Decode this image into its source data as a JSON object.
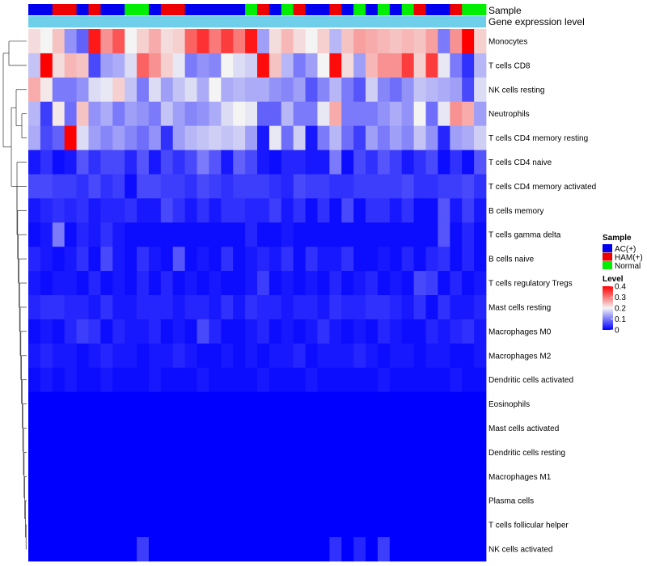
{
  "chart_data": {
    "type": "heatmap",
    "annotation_rows": [
      "Sample",
      "Gene expression level"
    ],
    "sample_groups": [
      "AC(+)",
      "AC(+)",
      "HAM(+)",
      "HAM(+)",
      "AC(+)",
      "HAM(+)",
      "AC(+)",
      "AC(+)",
      "Normal",
      "Normal",
      "AC(+)",
      "HAM(+)",
      "HAM(+)",
      "AC(+)",
      "AC(+)",
      "AC(+)",
      "AC(+)",
      "AC(+)",
      "Normal",
      "HAM(+)",
      "AC(+)",
      "Normal",
      "HAM(+)",
      "AC(+)",
      "AC(+)",
      "HAM(+)",
      "AC(+)",
      "Normal",
      "AC(+)",
      "Normal",
      "AC(+)",
      "Normal",
      "HAM(+)",
      "AC(+)",
      "AC(+)",
      "HAM(+)",
      "Normal",
      "Normal"
    ],
    "rows": [
      {
        "name": "Monocytes",
        "values": [
          0.22,
          0.2,
          0.24,
          0.12,
          0.08,
          0.38,
          0.28,
          0.33,
          0.2,
          0.23,
          0.26,
          0.22,
          0.23,
          0.32,
          0.36,
          0.3,
          0.35,
          0.3,
          0.38,
          0.13,
          0.22,
          0.25,
          0.22,
          0.2,
          0.23,
          0.15,
          0.24,
          0.27,
          0.26,
          0.25,
          0.24,
          0.25,
          0.24,
          0.27,
          0.1,
          0.28,
          0.4,
          0.23
        ]
      },
      {
        "name": "T cells CD8",
        "values": [
          0.16,
          0.4,
          0.22,
          0.25,
          0.24,
          0.06,
          0.13,
          0.14,
          0.18,
          0.32,
          0.28,
          0.23,
          0.19,
          0.1,
          0.12,
          0.11,
          0.2,
          0.18,
          0.17,
          0.39,
          0.24,
          0.15,
          0.1,
          0.13,
          0.2,
          0.39,
          0.22,
          0.13,
          0.25,
          0.28,
          0.28,
          0.35,
          0.23,
          0.35,
          0.19,
          0.1,
          0.04,
          0.15
        ]
      },
      {
        "name": "NK cells resting",
        "values": [
          0.26,
          0.21,
          0.1,
          0.1,
          0.12,
          0.18,
          0.19,
          0.23,
          0.16,
          0.1,
          0.18,
          0.13,
          0.16,
          0.18,
          0.14,
          0.2,
          0.14,
          0.15,
          0.14,
          0.14,
          0.12,
          0.11,
          0.13,
          0.07,
          0.11,
          0.15,
          0.1,
          0.07,
          0.17,
          0.11,
          0.09,
          0.12,
          0.16,
          0.15,
          0.14,
          0.13,
          0.06,
          0.18
        ]
      },
      {
        "name": "Neutrophils",
        "values": [
          0.15,
          0.05,
          0.21,
          0.09,
          0.24,
          0.12,
          0.14,
          0.1,
          0.13,
          0.12,
          0.1,
          0.16,
          0.13,
          0.11,
          0.12,
          0.14,
          0.18,
          0.2,
          0.19,
          0.08,
          0.08,
          0.15,
          0.1,
          0.1,
          0.19,
          0.26,
          0.1,
          0.1,
          0.1,
          0.12,
          0.14,
          0.12,
          0.2,
          0.09,
          0.19,
          0.28,
          0.26,
          0.13
        ]
      },
      {
        "name": "T cells CD4 memory resting",
        "values": [
          0.14,
          0.06,
          0.08,
          0.4,
          0.18,
          0.13,
          0.11,
          0.13,
          0.11,
          0.09,
          0.12,
          0.04,
          0.13,
          0.15,
          0.16,
          0.17,
          0.16,
          0.17,
          0.13,
          0.02,
          0.19,
          0.09,
          0.17,
          0.02,
          0.1,
          0.15,
          0.09,
          0.05,
          0.13,
          0.1,
          0.13,
          0.11,
          0.16,
          0.12,
          0.03,
          0.13,
          0.14,
          0.17
        ]
      },
      {
        "name": "T cells CD4 naive",
        "values": [
          0.02,
          0.04,
          0.01,
          0.02,
          0.07,
          0.04,
          0.06,
          0.06,
          0.03,
          0.07,
          0.02,
          0.06,
          0.04,
          0.06,
          0.1,
          0.07,
          0.02,
          0.08,
          0.06,
          0.02,
          0.01,
          0.03,
          0.03,
          0.02,
          0.02,
          0.1,
          0.01,
          0.06,
          0.04,
          0.07,
          0.05,
          0.02,
          0.04,
          0.06,
          0.01,
          0.04,
          0.01,
          0.07
        ]
      },
      {
        "name": "T cells CD4 memory activated",
        "values": [
          0.06,
          0.06,
          0.05,
          0.05,
          0.04,
          0.06,
          0.04,
          0.05,
          0.01,
          0.06,
          0.06,
          0.05,
          0.05,
          0.04,
          0.06,
          0.05,
          0.04,
          0.05,
          0.05,
          0.05,
          0.04,
          0.03,
          0.06,
          0.05,
          0.05,
          0.04,
          0.04,
          0.05,
          0.05,
          0.05,
          0.05,
          0.06,
          0.04,
          0.04,
          0.05,
          0.05,
          0.06,
          0.04
        ]
      },
      {
        "name": "B cells memory",
        "values": [
          0.02,
          0.03,
          0.04,
          0.03,
          0.04,
          0.02,
          0.03,
          0.03,
          0.04,
          0.02,
          0.02,
          0.06,
          0.04,
          0.02,
          0.04,
          0.02,
          0.04,
          0.04,
          0.03,
          0.03,
          0.05,
          0.02,
          0.04,
          0.01,
          0.04,
          0.01,
          0.06,
          0.01,
          0.04,
          0.04,
          0.02,
          0.04,
          0.01,
          0.01,
          0.07,
          0.02,
          0.05,
          0.02
        ]
      },
      {
        "name": "T cells gamma delta",
        "values": [
          0.01,
          0.02,
          0.1,
          0.01,
          0.03,
          0.02,
          0.04,
          0.02,
          0.01,
          0.01,
          0.01,
          0.01,
          0.01,
          0.01,
          0.01,
          0.01,
          0.01,
          0.01,
          0.03,
          0.01,
          0.01,
          0.02,
          0.01,
          0.01,
          0.01,
          0.01,
          0.01,
          0.01,
          0.01,
          0.01,
          0.01,
          0.01,
          0.01,
          0.01,
          0.07,
          0.01,
          0.03,
          0.01
        ]
      },
      {
        "name": "B cells naive",
        "values": [
          0.03,
          0.02,
          0.01,
          0.02,
          0.04,
          0.01,
          0.06,
          0.02,
          0.01,
          0.04,
          0.02,
          0.01,
          0.07,
          0.01,
          0.02,
          0.01,
          0.04,
          0.01,
          0.02,
          0.03,
          0.02,
          0.04,
          0.01,
          0.04,
          0.02,
          0.02,
          0.04,
          0.01,
          0.01,
          0.02,
          0.01,
          0.03,
          0.01,
          0.03,
          0.04,
          0.01,
          0.03,
          0.01
        ]
      },
      {
        "name": "T cells regulatory  Tregs",
        "values": [
          0.02,
          0.01,
          0.02,
          0.02,
          0.01,
          0.03,
          0.01,
          0.02,
          0.01,
          0.03,
          0.01,
          0.03,
          0.01,
          0.02,
          0.01,
          0.02,
          0.01,
          0.01,
          0.02,
          0.05,
          0.01,
          0.02,
          0.01,
          0.02,
          0.01,
          0.03,
          0.01,
          0.02,
          0.03,
          0.01,
          0.02,
          0.01,
          0.06,
          0.05,
          0.01,
          0.03,
          0.01,
          0.02
        ]
      },
      {
        "name": "Mast cells resting",
        "values": [
          0.03,
          0.04,
          0.04,
          0.03,
          0.03,
          0.02,
          0.04,
          0.02,
          0.02,
          0.03,
          0.03,
          0.03,
          0.02,
          0.03,
          0.03,
          0.02,
          0.04,
          0.02,
          0.04,
          0.03,
          0.03,
          0.02,
          0.03,
          0.03,
          0.02,
          0.04,
          0.03,
          0.03,
          0.04,
          0.04,
          0.03,
          0.02,
          0.04,
          0.01,
          0.04,
          0.02,
          0.02,
          0.03
        ]
      },
      {
        "name": "Macrophages M0",
        "values": [
          0.01,
          0.02,
          0.01,
          0.03,
          0.05,
          0.04,
          0.01,
          0.03,
          0.02,
          0.02,
          0.03,
          0.01,
          0.02,
          0.01,
          0.06,
          0.03,
          0.01,
          0.01,
          0.02,
          0.03,
          0.01,
          0.02,
          0.01,
          0.02,
          0.04,
          0.02,
          0.01,
          0.02,
          0.01,
          0.03,
          0.02,
          0.01,
          0.01,
          0.03,
          0.02,
          0.03,
          0.04,
          0.02
        ]
      },
      {
        "name": "Macrophages M2",
        "values": [
          0.02,
          0.03,
          0.02,
          0.02,
          0.01,
          0.02,
          0.03,
          0.02,
          0.02,
          0.01,
          0.02,
          0.02,
          0.03,
          0.02,
          0.01,
          0.01,
          0.02,
          0.01,
          0.02,
          0.01,
          0.02,
          0.02,
          0.03,
          0.01,
          0.02,
          0.02,
          0.02,
          0.03,
          0.02,
          0.01,
          0.02,
          0.02,
          0.01,
          0.02,
          0.02,
          0.01,
          0.01,
          0.02
        ]
      },
      {
        "name": "Dendritic cells activated",
        "values": [
          0.01,
          0.02,
          0.01,
          0.02,
          0.01,
          0.01,
          0.02,
          0.01,
          0.01,
          0.01,
          0.02,
          0.01,
          0.01,
          0.01,
          0.02,
          0.01,
          0.01,
          0.01,
          0.01,
          0.02,
          0.01,
          0.01,
          0.01,
          0.02,
          0.01,
          0.01,
          0.01,
          0.01,
          0.01,
          0.02,
          0.01,
          0.01,
          0.01,
          0.01,
          0.01,
          0.02,
          0.01,
          0.01
        ]
      },
      {
        "name": "Eosinophils",
        "values": [
          0,
          0,
          0,
          0,
          0,
          0,
          0,
          0,
          0,
          0,
          0,
          0,
          0,
          0,
          0,
          0,
          0,
          0,
          0,
          0,
          0,
          0,
          0,
          0,
          0,
          0,
          0,
          0,
          0,
          0,
          0,
          0,
          0,
          0,
          0,
          0,
          0,
          0
        ]
      },
      {
        "name": "Mast cells activated",
        "values": [
          0,
          0,
          0,
          0,
          0,
          0,
          0,
          0,
          0,
          0,
          0,
          0,
          0,
          0,
          0,
          0,
          0,
          0,
          0,
          0,
          0,
          0,
          0,
          0,
          0,
          0,
          0,
          0,
          0,
          0,
          0,
          0,
          0,
          0,
          0,
          0,
          0,
          0
        ]
      },
      {
        "name": "Dendritic cells resting",
        "values": [
          0,
          0,
          0,
          0,
          0,
          0,
          0,
          0,
          0,
          0,
          0,
          0,
          0,
          0,
          0,
          0,
          0,
          0,
          0,
          0,
          0,
          0,
          0,
          0,
          0,
          0,
          0,
          0,
          0,
          0,
          0,
          0,
          0,
          0,
          0,
          0,
          0,
          0
        ]
      },
      {
        "name": "Macrophages M1",
        "values": [
          0,
          0,
          0,
          0,
          0,
          0,
          0,
          0,
          0,
          0,
          0,
          0,
          0,
          0,
          0,
          0,
          0,
          0,
          0,
          0,
          0,
          0,
          0,
          0,
          0,
          0,
          0,
          0,
          0,
          0,
          0,
          0,
          0,
          0,
          0,
          0,
          0,
          0
        ]
      },
      {
        "name": "Plasma cells",
        "values": [
          0,
          0,
          0,
          0,
          0,
          0,
          0,
          0,
          0,
          0,
          0,
          0,
          0,
          0,
          0,
          0,
          0,
          0,
          0,
          0,
          0,
          0,
          0,
          0,
          0,
          0,
          0,
          0,
          0,
          0,
          0,
          0,
          0,
          0,
          0,
          0,
          0,
          0
        ]
      },
      {
        "name": "T cells follicular helper",
        "values": [
          0,
          0,
          0,
          0,
          0,
          0,
          0,
          0,
          0,
          0,
          0,
          0,
          0,
          0,
          0,
          0,
          0,
          0,
          0,
          0,
          0,
          0,
          0,
          0,
          0,
          0,
          0,
          0,
          0,
          0,
          0,
          0,
          0,
          0,
          0,
          0,
          0,
          0
        ]
      },
      {
        "name": "NK cells activated",
        "values": [
          0,
          0,
          0,
          0,
          0,
          0,
          0,
          0,
          0,
          0.05,
          0,
          0,
          0,
          0,
          0,
          0,
          0,
          0,
          0,
          0,
          0,
          0,
          0,
          0,
          0,
          0.04,
          0,
          0.03,
          0,
          0.05,
          0,
          0,
          0,
          0,
          0,
          0,
          0,
          0
        ]
      }
    ],
    "color_scale": {
      "min": 0,
      "mid": 0.2,
      "max": 0.4,
      "low_color": "#0000ff",
      "mid_color": "#f4f4f4",
      "high_color": "#ff0000"
    },
    "annotation_colors": {
      "AC(+)": "#0000ee",
      "HAM(+)": "#ee0000",
      "Normal": "#00ee00",
      "gene_expression": "#6fcfeb"
    },
    "legend": {
      "sample_title": "Sample",
      "sample_entries": [
        {
          "label": "AC(+)",
          "color": "#0000ee"
        },
        {
          "label": "HAM(+)",
          "color": "#ee0000"
        },
        {
          "label": "Normal",
          "color": "#00ee00"
        }
      ],
      "level_title": "Level",
      "level_ticks": [
        0.4,
        0.3,
        0.2,
        0.1,
        0
      ],
      "placement": "right"
    },
    "row_dendrogram": true,
    "column_dendrogram": false
  }
}
